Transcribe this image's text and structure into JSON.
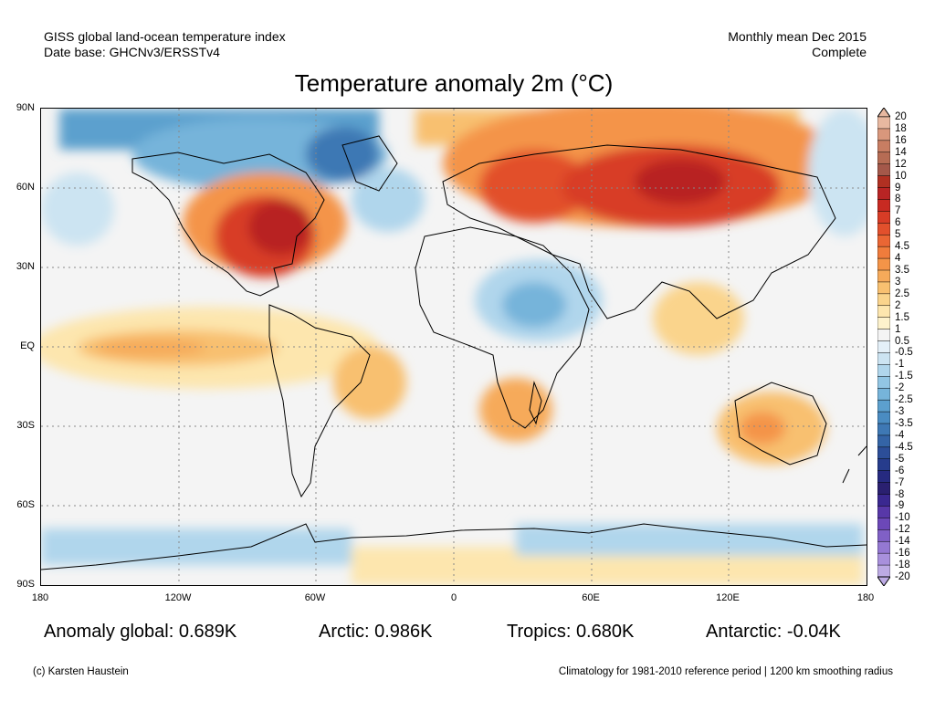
{
  "header": {
    "source_line1": "GISS global land-ocean temperature index",
    "source_line2": "Date base: GHCNv3/ERSSTv4",
    "period_line1": "Monthly mean Dec 2015",
    "period_line2": "Complete"
  },
  "title": "Temperature anomaly 2m (°C)",
  "axes": {
    "lat_labels": [
      "90N",
      "60N",
      "30N",
      "EQ",
      "30S",
      "60S",
      "90S"
    ],
    "lon_labels": [
      "180",
      "120W",
      "60W",
      "0",
      "60E",
      "120E",
      "180"
    ]
  },
  "colorbar": {
    "labels": [
      "20",
      "18",
      "16",
      "14",
      "12",
      "10",
      "9",
      "8",
      "7",
      "6",
      "5",
      "4.5",
      "4",
      "3.5",
      "3",
      "2.5",
      "2",
      "1.5",
      "1",
      "0.5",
      "-0.5",
      "-1",
      "-1.5",
      "-2",
      "-2.5",
      "-3",
      "-3.5",
      "-4",
      "-4.5",
      "-5",
      "-6",
      "-7",
      "-8",
      "-9",
      "-10",
      "-12",
      "-14",
      "-16",
      "-18",
      "-20"
    ],
    "colors": [
      "#e8b8a0",
      "#d9977c",
      "#c87d62",
      "#b66c54",
      "#a4584a",
      "#b03022",
      "#b82424",
      "#c82a22",
      "#d83c26",
      "#e2502c",
      "#ea6634",
      "#f07c3c",
      "#f49448",
      "#f6aa5a",
      "#f8c070",
      "#fad48c",
      "#fde6ae",
      "#fdf2cc",
      "#f4f4f4",
      "#e4f0f8",
      "#cce4f2",
      "#b0d6ec",
      "#92c6e4",
      "#76b4da",
      "#5ca0ce",
      "#4a8cc2",
      "#3e78b4",
      "#3464a6",
      "#2c4e98",
      "#263c8c",
      "#262a80",
      "#2a2070",
      "#3a2890",
      "#5838a8",
      "#6c48b8",
      "#8060c6",
      "#9478d2",
      "#a890dc",
      "#bcaae4"
    ]
  },
  "stats": {
    "global": "Anomaly global: 0.689K",
    "arctic": "Arctic: 0.986K",
    "tropics": "Tropics: 0.680K",
    "antarctic": "Antarctic: -0.04K"
  },
  "footer": {
    "credit": "(c) Karsten Haustein",
    "note": "Climatology for 1981-2010 reference period | 1200 km smoothing radius"
  }
}
